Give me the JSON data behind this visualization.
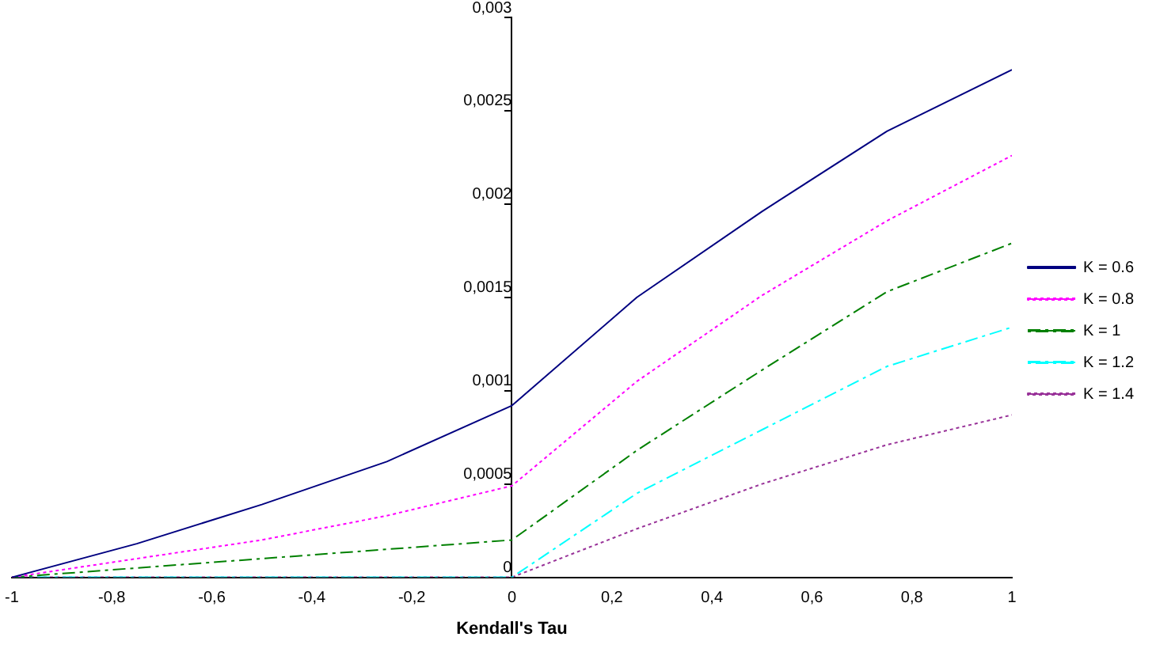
{
  "chart_data": {
    "type": "line",
    "xlabel": "Kendall's Tau",
    "x": [
      -1,
      -0.75,
      -0.5,
      -0.25,
      0,
      0.25,
      0.5,
      0.75,
      1
    ],
    "series": [
      {
        "name": "K = 0.6",
        "color": "#000080",
        "line_style": "solid",
        "values": [
          0,
          0.00018,
          0.00039,
          0.00062,
          0.00092,
          0.0015,
          0.00196,
          0.00239,
          0.00272
        ]
      },
      {
        "name": "K = 0.8",
        "color": "#ff00ff",
        "line_style": "dotted",
        "values": [
          0,
          0.0001,
          0.0002,
          0.00033,
          0.00049,
          0.00105,
          0.00151,
          0.00191,
          0.00226
        ]
      },
      {
        "name": "K = 1",
        "color": "#008000",
        "line_style": "dashed",
        "values": [
          0,
          5e-05,
          0.0001,
          0.00015,
          0.0002,
          0.00068,
          0.00111,
          0.00153,
          0.00179
        ]
      },
      {
        "name": "K = 1.2",
        "color": "#00ffff",
        "line_style": "dashed",
        "values": [
          0,
          0,
          0,
          0,
          0,
          0.00045,
          0.00079,
          0.00113,
          0.00134
        ]
      },
      {
        "name": "K = 1.4",
        "color": "#993399",
        "line_style": "dotted",
        "values": [
          0,
          0,
          0,
          0,
          0,
          0.00026,
          0.0005,
          0.00071,
          0.00087
        ]
      }
    ],
    "xlim": [
      -1,
      1
    ],
    "xticks": [
      -1,
      {
        "value": -0.8,
        "label": "-0,8"
      },
      {
        "value": -0.6,
        "label": "-0,6"
      },
      {
        "value": -0.4,
        "label": "-0,4"
      },
      {
        "value": -0.2,
        "label": "-0,2"
      },
      0,
      {
        "value": 0.2,
        "label": "0,2"
      },
      {
        "value": 0.4,
        "label": "0,4"
      },
      {
        "value": 0.6,
        "label": "0,6"
      },
      {
        "value": 0.8,
        "label": "0,8"
      },
      1
    ],
    "ylim": [
      0,
      0.003
    ],
    "yticks": [
      0,
      {
        "value": 0.0005,
        "label": "0,0005"
      },
      {
        "value": 0.001,
        "label": "0,001"
      },
      {
        "value": 0.0015,
        "label": "0,0015"
      },
      {
        "value": 0.002,
        "label": "0,002"
      },
      {
        "value": 0.0025,
        "label": "0,0025"
      },
      {
        "value": 0.003,
        "label": "0,003"
      }
    ],
    "grid": false,
    "legend": "right",
    "marker": "none"
  }
}
